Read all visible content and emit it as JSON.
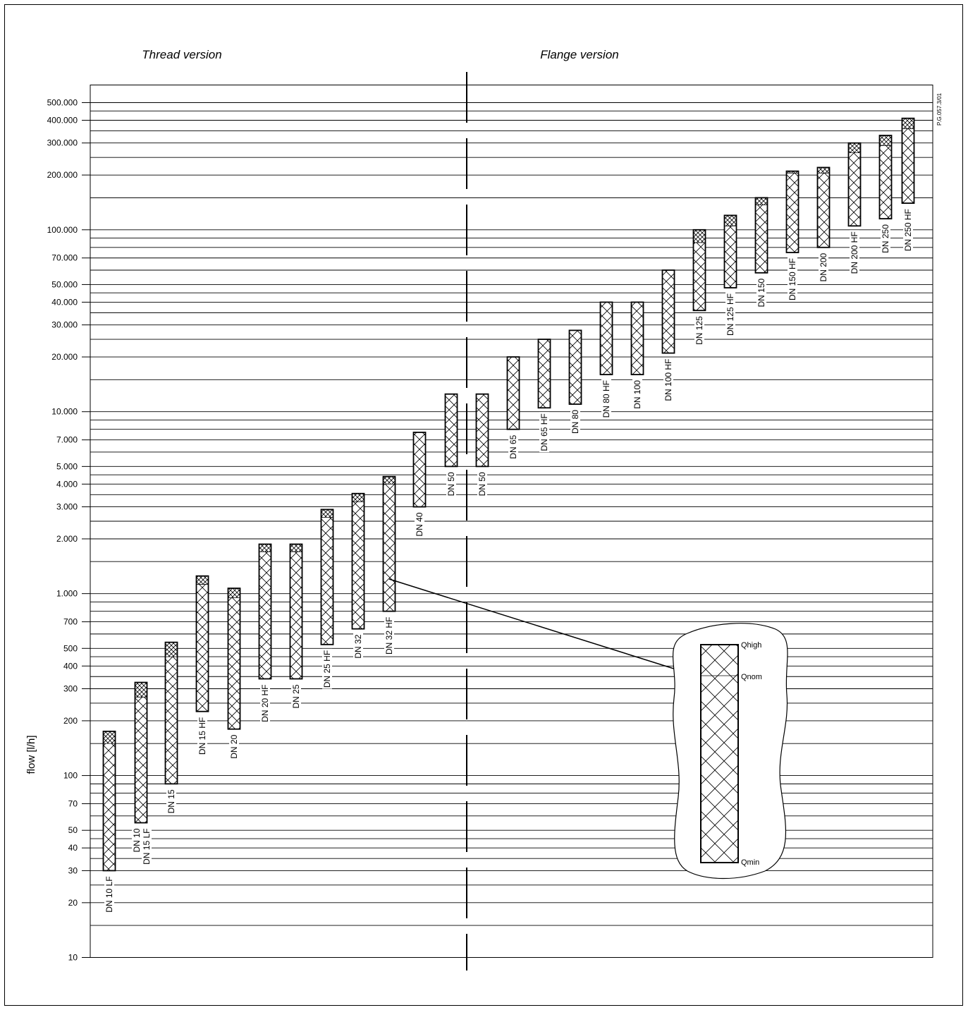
{
  "chart_data": {
    "type": "bar",
    "subtype": "floating-range",
    "scale": "log",
    "ylabel": "flow [l/h]",
    "ylim": [
      10,
      500000
    ],
    "section_titles": [
      "Thread version",
      "Flange version"
    ],
    "code": "P.G.057.3/01",
    "ticks": [
      {
        "value": 10,
        "label": "10"
      },
      {
        "value": 20,
        "label": "20"
      },
      {
        "value": 30,
        "label": "30"
      },
      {
        "value": 40,
        "label": "40"
      },
      {
        "value": 50,
        "label": "50"
      },
      {
        "value": 70,
        "label": "70"
      },
      {
        "value": 100,
        "label": "100"
      },
      {
        "value": 200,
        "label": "200"
      },
      {
        "value": 300,
        "label": "300"
      },
      {
        "value": 400,
        "label": "400"
      },
      {
        "value": 500,
        "label": "500"
      },
      {
        "value": 700,
        "label": "700"
      },
      {
        "value": 1000,
        "label": "1.000"
      },
      {
        "value": 2000,
        "label": "2.000"
      },
      {
        "value": 3000,
        "label": "3.000"
      },
      {
        "value": 4000,
        "label": "4.000"
      },
      {
        "value": 5000,
        "label": "5.000"
      },
      {
        "value": 7000,
        "label": "7.000"
      },
      {
        "value": 10000,
        "label": "10.000"
      },
      {
        "value": 20000,
        "label": "20.000"
      },
      {
        "value": 30000,
        "label": "30.000"
      },
      {
        "value": 40000,
        "label": "40.000"
      },
      {
        "value": 50000,
        "label": "50.000"
      },
      {
        "value": 70000,
        "label": "70.000"
      },
      {
        "value": 100000,
        "label": "100.000"
      },
      {
        "value": 200000,
        "label": "200.000"
      },
      {
        "value": 300000,
        "label": "300.000"
      },
      {
        "value": 400000,
        "label": "400.000"
      },
      {
        "value": 500000,
        "label": "500.000"
      }
    ],
    "gridlines": [
      10,
      15,
      20,
      25,
      30,
      35,
      40,
      45,
      50,
      60,
      70,
      80,
      90,
      100,
      150,
      200,
      250,
      300,
      350,
      400,
      450,
      500,
      600,
      700,
      800,
      900,
      1000,
      1500,
      2000,
      2500,
      3000,
      3500,
      4000,
      4500,
      5000,
      6000,
      7000,
      8000,
      9000,
      10000,
      15000,
      20000,
      25000,
      30000,
      35000,
      40000,
      45000,
      50000,
      60000,
      70000,
      80000,
      90000,
      100000,
      150000,
      200000,
      250000,
      300000,
      350000,
      400000,
      450000,
      500000
    ],
    "bars": [
      {
        "label": "DN 10 LF",
        "qmin": 30,
        "qnom": 150,
        "qhigh": 175
      },
      {
        "label": "DN 10",
        "qmin": 55,
        "qnom": 270,
        "qhigh": 325
      },
      {
        "label": "DN 15 LF",
        "qmin": 55,
        "qnom": 270,
        "qhigh": 325
      },
      {
        "label": "DN 15",
        "qmin": 90,
        "qnom": 450,
        "qhigh": 540
      },
      {
        "label": "DN 15 HF",
        "qmin": 225,
        "qnom": 1125,
        "qhigh": 1250
      },
      {
        "label": "DN 20",
        "qmin": 180,
        "qnom": 950,
        "qhigh": 1070
      },
      {
        "label": "DN 20 HF",
        "qmin": 340,
        "qnom": 1700,
        "qhigh": 1870
      },
      {
        "label": "DN 25",
        "qmin": 340,
        "qnom": 1700,
        "qhigh": 1870
      },
      {
        "label": "DN 25 HF",
        "qmin": 525,
        "qnom": 2625,
        "qhigh": 2900
      },
      {
        "label": "DN 32",
        "qmin": 640,
        "qnom": 3200,
        "qhigh": 3550
      },
      {
        "label": "DN 32 HF",
        "qmin": 800,
        "qnom": 4000,
        "qhigh": 4400
      },
      {
        "label": "DN 40",
        "qmin": 3000,
        "qnom": 7700,
        "qhigh": 7700
      },
      {
        "label": "DN 50",
        "qmin": 5000,
        "qnom": 12500,
        "qhigh": 12500
      },
      {
        "label": "DN 50",
        "qmin": 5000,
        "qnom": 12500,
        "qhigh": 12500
      },
      {
        "label": "DN 65",
        "qmin": 8000,
        "qnom": 20000,
        "qhigh": 20000
      },
      {
        "label": "DN 65 HF",
        "qmin": 10500,
        "qnom": 25000,
        "qhigh": 25000
      },
      {
        "label": "DN 80",
        "qmin": 11000,
        "qnom": 28000,
        "qhigh": 28000
      },
      {
        "label": "DN 80 HF",
        "qmin": 16000,
        "qnom": 40000,
        "qhigh": 40000
      },
      {
        "label": "DN 100",
        "qmin": 16000,
        "qnom": 40000,
        "qhigh": 40000
      },
      {
        "label": "DN 100 HF",
        "qmin": 21000,
        "qnom": 60000,
        "qhigh": 60000
      },
      {
        "label": "DN 125",
        "qmin": 36000,
        "qnom": 85000,
        "qhigh": 100000
      },
      {
        "label": "DN 125 HF",
        "qmin": 48000,
        "qnom": 105000,
        "qhigh": 120000
      },
      {
        "label": "DN 150",
        "qmin": 58000,
        "qnom": 137000,
        "qhigh": 150000
      },
      {
        "label": "DN 150 HF",
        "qmin": 75000,
        "qnom": 205000,
        "qhigh": 210000
      },
      {
        "label": "DN 200",
        "qmin": 80000,
        "qnom": 205000,
        "qhigh": 220000
      },
      {
        "label": "DN 200 HF",
        "qmin": 105000,
        "qnom": 265000,
        "qhigh": 300000
      },
      {
        "label": "DN 250",
        "qmin": 115000,
        "qnom": 290000,
        "qhigh": 330000
      },
      {
        "label": "DN 250 HF",
        "qmin": 140000,
        "qnom": 360000,
        "qhigh": 410000
      }
    ],
    "inset_legend": {
      "labels": [
        "Qhigh",
        "Qnom",
        "Qmin"
      ]
    }
  }
}
